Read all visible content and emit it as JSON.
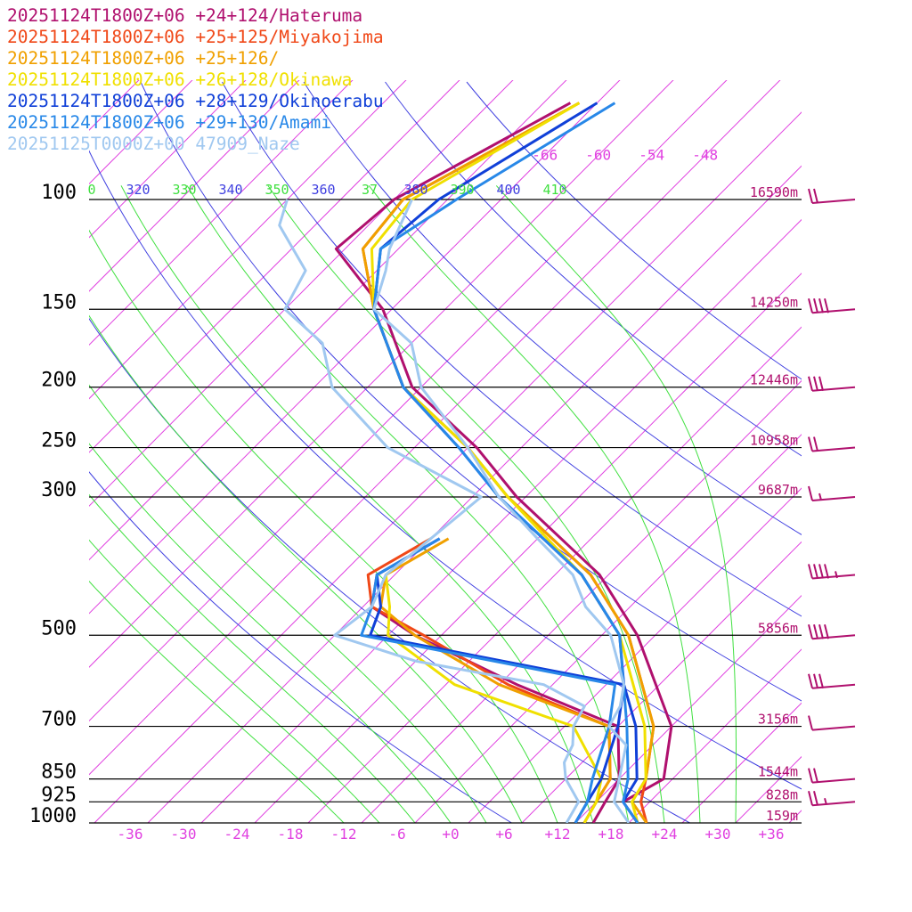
{
  "legend": [
    {
      "label": "20251124T1800Z+06 +24+124/Hateruma",
      "color": "#b0106e"
    },
    {
      "label": "20251124T1800Z+06 +25+125/Miyakojima",
      "color": "#f04818"
    },
    {
      "label": "20251124T1800Z+06 +25+126/",
      "color": "#f0a000"
    },
    {
      "label": "20251124T1800Z+06 +26+128/Okinawa",
      "color": "#f0e000"
    },
    {
      "label": "20251124T1800Z+06 +28+129/Okinoerabu",
      "color": "#1040d8"
    },
    {
      "label": "20251124T1800Z+06 +29+130/Amami",
      "color": "#2888e8"
    },
    {
      "label": "20251125T0000Z+00 47909_Naze",
      "color": "#a0c8f0"
    }
  ],
  "colors": {
    "isotherm": "#e040e0",
    "dry_adiabat": "#4040e0",
    "moist_adiabat": "#40e040",
    "isobar": "#000000",
    "height_label": "#b0106e",
    "wind_barb": "#b0106e"
  },
  "chart_data": {
    "type": "line",
    "skew_t": true,
    "y_scale": "log-pressure",
    "pressure_levels": [
      "100",
      "150",
      "200",
      "250",
      "300",
      "500",
      "700",
      "850",
      "925",
      "1000"
    ],
    "heights": [
      "16590m",
      "14250m",
      "12446m",
      "10958m",
      "9687m",
      "5856m",
      "3156m",
      "1544m",
      "828m",
      "159m"
    ],
    "x_ticks": [
      "-36",
      "-30",
      "-24",
      "-18",
      "-12",
      "-6",
      "+0",
      "+6",
      "+12",
      "+18",
      "+24",
      "+30",
      "+36"
    ],
    "isotherm_labels": [
      "-66",
      "-60",
      "-54",
      "-48"
    ],
    "theta_labels": [
      {
        "text": "0",
        "kind": "moist"
      },
      {
        "text": "320",
        "kind": "dry"
      },
      {
        "text": "330",
        "kind": "moist"
      },
      {
        "text": "340",
        "kind": "dry"
      },
      {
        "text": "350",
        "kind": "moist"
      },
      {
        "text": "360",
        "kind": "dry"
      },
      {
        "text": "37",
        "kind": "moist"
      },
      {
        "text": "380",
        "kind": "dry"
      },
      {
        "text": "390",
        "kind": "moist"
      },
      {
        "text": "400",
        "kind": "dry"
      },
      {
        "text": "410",
        "kind": "moist"
      }
    ],
    "series": [
      {
        "name": "20251124T1800Z+06 +24+124/Hateruma",
        "color": "#b0106e",
        "temp": [
          [
            1000,
            21
          ],
          [
            925,
            17
          ],
          [
            850,
            19
          ],
          [
            700,
            14
          ],
          [
            500,
            0
          ],
          [
            400,
            -11
          ],
          [
            300,
            -29
          ],
          [
            250,
            -39
          ],
          [
            200,
            -53
          ],
          [
            150,
            -65
          ],
          [
            120,
            -77
          ],
          [
            100,
            -76
          ],
          [
            70,
            -67
          ]
        ],
        "dew": [
          [
            1000,
            16
          ],
          [
            925,
            15
          ],
          [
            850,
            14
          ],
          [
            700,
            8
          ],
          [
            600,
            -8
          ],
          [
            500,
            -25
          ],
          [
            450,
            -33
          ],
          [
            400,
            -36
          ],
          [
            350,
            -33
          ]
        ]
      },
      {
        "name": "20251124T1800Z+06 +25+125/Miyakojima",
        "color": "#f04818",
        "temp": [
          [
            1000,
            22
          ],
          [
            925,
            19
          ],
          [
            850,
            17
          ],
          [
            700,
            12
          ],
          [
            500,
            -1
          ],
          [
            400,
            -12
          ],
          [
            300,
            -30
          ],
          [
            250,
            -40
          ],
          [
            200,
            -54
          ],
          [
            150,
            -66
          ],
          [
            120,
            -74
          ],
          [
            100,
            -75
          ],
          [
            70,
            -66
          ]
        ],
        "dew": [
          [
            1000,
            15
          ],
          [
            925,
            14
          ],
          [
            850,
            13
          ],
          [
            700,
            7
          ],
          [
            600,
            -9
          ],
          [
            500,
            -24
          ],
          [
            450,
            -33
          ],
          [
            400,
            -37
          ],
          [
            350,
            -34
          ]
        ]
      },
      {
        "name": "20251124T1800Z+06 +25+126/",
        "color": "#f0a000",
        "temp": [
          [
            1000,
            22
          ],
          [
            925,
            18
          ],
          [
            850,
            17
          ],
          [
            700,
            12
          ],
          [
            500,
            -1
          ],
          [
            400,
            -12
          ],
          [
            300,
            -30
          ],
          [
            250,
            -40
          ],
          [
            200,
            -54
          ],
          [
            150,
            -66
          ],
          [
            120,
            -74
          ],
          [
            100,
            -75
          ],
          [
            70,
            -66
          ]
        ],
        "dew": [
          [
            1000,
            15
          ],
          [
            925,
            14
          ],
          [
            850,
            13
          ],
          [
            700,
            7
          ],
          [
            600,
            -10
          ],
          [
            500,
            -25
          ],
          [
            450,
            -32
          ],
          [
            400,
            -35
          ],
          [
            350,
            -32
          ]
        ]
      },
      {
        "name": "20251124T1800Z+06 +26+128/Okinawa",
        "color": "#f0e000",
        "temp": [
          [
            1000,
            21
          ],
          [
            925,
            18
          ],
          [
            850,
            17
          ],
          [
            700,
            11
          ],
          [
            500,
            -2
          ],
          [
            400,
            -13
          ],
          [
            300,
            -30
          ],
          [
            250,
            -40
          ],
          [
            200,
            -54
          ],
          [
            150,
            -66
          ],
          [
            120,
            -73
          ],
          [
            100,
            -74
          ],
          [
            70,
            -66
          ]
        ],
        "dew": [
          [
            1000,
            15
          ],
          [
            925,
            14
          ],
          [
            850,
            12
          ],
          [
            700,
            3
          ],
          [
            600,
            -15
          ],
          [
            500,
            -28
          ],
          [
            450,
            -31
          ],
          [
            400,
            -35
          ],
          [
            350,
            -34
          ]
        ]
      },
      {
        "name": "20251124T1800Z+06 +28+129/Okinoerabu",
        "color": "#1040d8",
        "temp": [
          [
            1000,
            21
          ],
          [
            925,
            17
          ],
          [
            850,
            16
          ],
          [
            700,
            10
          ],
          [
            600,
            4
          ],
          [
            500,
            -2
          ],
          [
            400,
            -13
          ],
          [
            300,
            -31
          ],
          [
            250,
            -41
          ],
          [
            200,
            -54
          ],
          [
            150,
            -66
          ],
          [
            120,
            -72
          ],
          [
            100,
            -71
          ],
          [
            70,
            -64
          ]
        ],
        "dew": [
          [
            1000,
            14
          ],
          [
            925,
            13
          ],
          [
            850,
            12
          ],
          [
            700,
            8
          ],
          [
            600,
            4
          ],
          [
            500,
            -30
          ],
          [
            450,
            -32
          ],
          [
            400,
            -36
          ],
          [
            350,
            -33
          ]
        ]
      },
      {
        "name": "20251124T1800Z+06 +29+130/Amami",
        "color": "#2888e8",
        "temp": [
          [
            1000,
            21
          ],
          [
            925,
            17
          ],
          [
            850,
            15
          ],
          [
            700,
            9
          ],
          [
            500,
            -2
          ],
          [
            400,
            -13
          ],
          [
            300,
            -31
          ],
          [
            250,
            -41
          ],
          [
            200,
            -54
          ],
          [
            150,
            -66
          ],
          [
            120,
            -72
          ],
          [
            100,
            -69
          ],
          [
            70,
            -62
          ]
        ],
        "dew": [
          [
            1000,
            14
          ],
          [
            925,
            13
          ],
          [
            850,
            11
          ],
          [
            700,
            7
          ],
          [
            600,
            3
          ],
          [
            500,
            -31
          ],
          [
            450,
            -33
          ],
          [
            400,
            -36
          ],
          [
            350,
            -33
          ]
        ]
      },
      {
        "name": "20251125T0000Z+00 47909_Naze",
        "color": "#a0c8f0",
        "temp": [
          [
            1000,
            20
          ],
          [
            925,
            16
          ],
          [
            850,
            14
          ],
          [
            750,
            11
          ],
          [
            700,
            7
          ],
          [
            650,
            6
          ],
          [
            600,
            4
          ],
          [
            500,
            -3
          ],
          [
            450,
            -9
          ],
          [
            400,
            -14
          ],
          [
            350,
            -22
          ],
          [
            300,
            -31
          ],
          [
            250,
            -40
          ],
          [
            200,
            -52
          ],
          [
            170,
            -58
          ],
          [
            150,
            -66
          ],
          [
            130,
            -69
          ],
          [
            120,
            -71
          ],
          [
            100,
            -74
          ]
        ],
        "dew": [
          [
            1000,
            13
          ],
          [
            925,
            12
          ],
          [
            850,
            8
          ],
          [
            800,
            6
          ],
          [
            750,
            5
          ],
          [
            700,
            3
          ],
          [
            650,
            2
          ],
          [
            600,
            -5
          ],
          [
            550,
            -22
          ],
          [
            500,
            -34
          ],
          [
            450,
            -33
          ],
          [
            400,
            -35
          ],
          [
            350,
            -34
          ],
          [
            300,
            -33
          ],
          [
            250,
            -49
          ],
          [
            200,
            -62
          ],
          [
            170,
            -68
          ],
          [
            150,
            -76
          ],
          [
            130,
            -78
          ],
          [
            110,
            -86
          ],
          [
            100,
            -88
          ]
        ]
      }
    ],
    "wind_barbs_knots": [
      {
        "pressure": 100,
        "speed": 20
      },
      {
        "pressure": 150,
        "speed": 40
      },
      {
        "pressure": 200,
        "speed": 30
      },
      {
        "pressure": 250,
        "speed": 20
      },
      {
        "pressure": 300,
        "speed": 15
      },
      {
        "pressure": 400,
        "speed": 45
      },
      {
        "pressure": 500,
        "speed": 40
      },
      {
        "pressure": 600,
        "speed": 30
      },
      {
        "pressure": 700,
        "speed": 10
      },
      {
        "pressure": 850,
        "speed": 20
      },
      {
        "pressure": 925,
        "speed": 25
      }
    ]
  }
}
